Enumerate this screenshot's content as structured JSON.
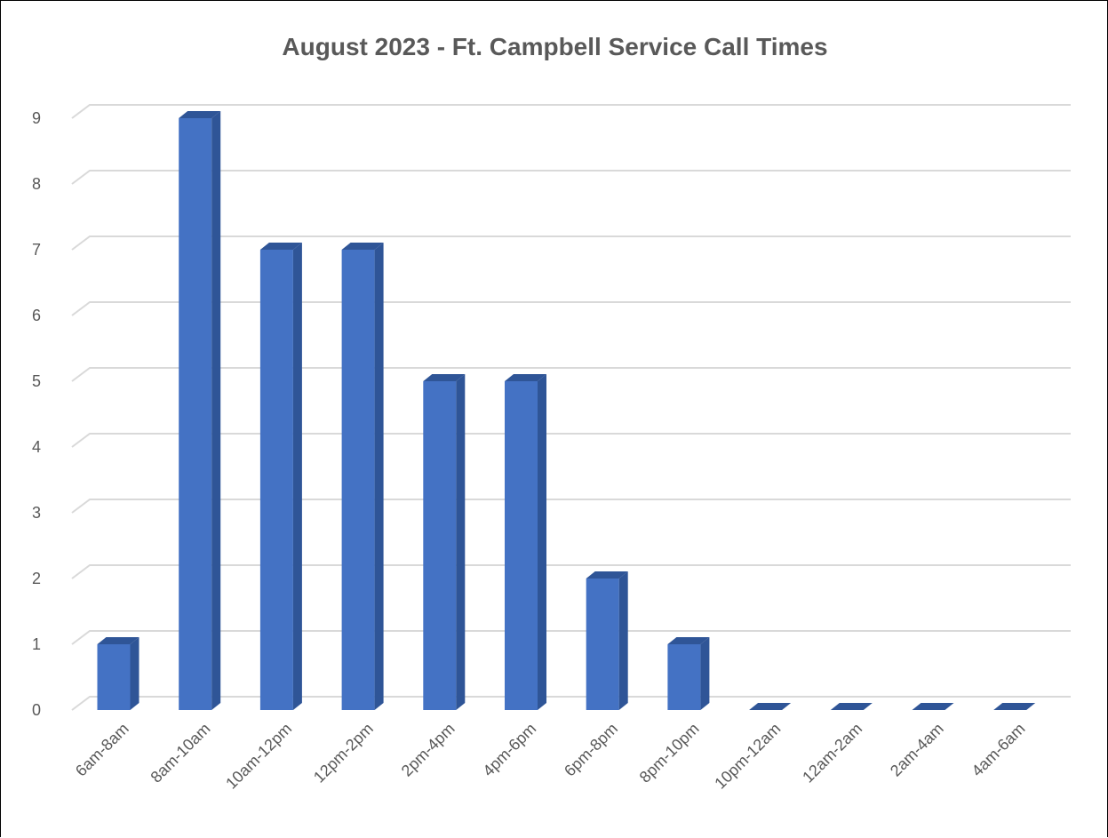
{
  "chart_data": {
    "type": "bar",
    "style": "3d-column",
    "title": "August 2023 - Ft. Campbell Service Call Times",
    "xlabel": "",
    "ylabel": "",
    "categories": [
      "6am-8am",
      "8am-10am",
      "10am-12pm",
      "12pm-2pm",
      "2pm-4pm",
      "4pm-6pm",
      "6pm-8pm",
      "8pm-10pm",
      "10pm-12am",
      "12am-2am",
      "2am-4am",
      "4am-6am"
    ],
    "values": [
      1,
      9,
      7,
      7,
      5,
      5,
      2,
      1,
      0,
      0,
      0,
      0
    ],
    "y_ticks": [
      "0",
      "1",
      "2",
      "3",
      "4",
      "5",
      "6",
      "7",
      "8",
      "9"
    ],
    "ylim": [
      0,
      9
    ],
    "grid": true,
    "legend": "none",
    "colors": {
      "bar_front": "#4472C4",
      "bar_side": "#2F5597",
      "bar_top": "#2F5597",
      "grid": "#D9D9D9",
      "text": "#595959"
    }
  }
}
